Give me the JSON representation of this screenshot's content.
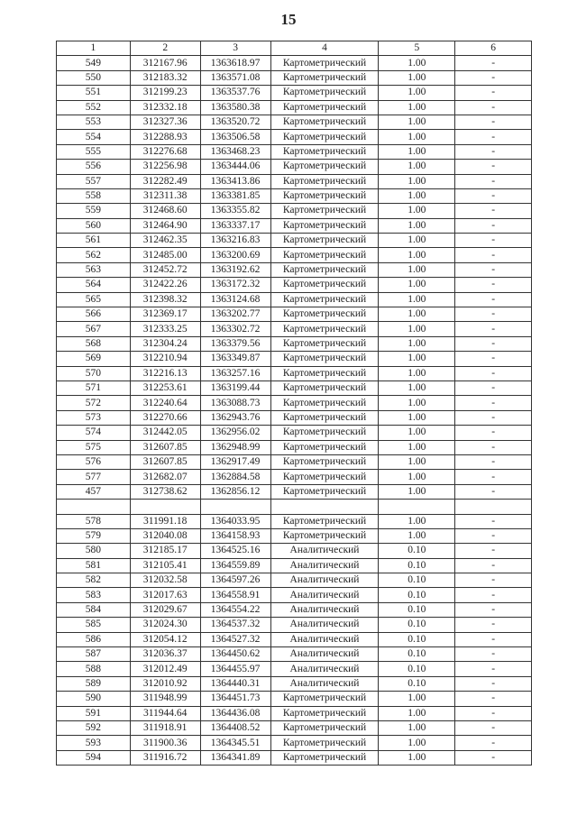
{
  "page_number": "15",
  "table": {
    "headers": [
      "1",
      "2",
      "3",
      "4",
      "5",
      "6"
    ],
    "rows": [
      [
        "549",
        "312167.96",
        "1363618.97",
        "Картометрический",
        "1.00",
        "-"
      ],
      [
        "550",
        "312183.32",
        "1363571.08",
        "Картометрический",
        "1.00",
        "-"
      ],
      [
        "551",
        "312199.23",
        "1363537.76",
        "Картометрический",
        "1.00",
        "-"
      ],
      [
        "552",
        "312332.18",
        "1363580.38",
        "Картометрический",
        "1.00",
        "-"
      ],
      [
        "553",
        "312327.36",
        "1363520.72",
        "Картометрический",
        "1.00",
        "-"
      ],
      [
        "554",
        "312288.93",
        "1363506.58",
        "Картометрический",
        "1.00",
        "-"
      ],
      [
        "555",
        "312276.68",
        "1363468.23",
        "Картометрический",
        "1.00",
        "-"
      ],
      [
        "556",
        "312256.98",
        "1363444.06",
        "Картометрический",
        "1.00",
        "-"
      ],
      [
        "557",
        "312282.49",
        "1363413.86",
        "Картометрический",
        "1.00",
        "-"
      ],
      [
        "558",
        "312311.38",
        "1363381.85",
        "Картометрический",
        "1.00",
        "-"
      ],
      [
        "559",
        "312468.60",
        "1363355.82",
        "Картометрический",
        "1.00",
        "-"
      ],
      [
        "560",
        "312464.90",
        "1363337.17",
        "Картометрический",
        "1.00",
        "-"
      ],
      [
        "561",
        "312462.35",
        "1363216.83",
        "Картометрический",
        "1.00",
        "-"
      ],
      [
        "562",
        "312485.00",
        "1363200.69",
        "Картометрический",
        "1.00",
        "-"
      ],
      [
        "563",
        "312452.72",
        "1363192.62",
        "Картометрический",
        "1.00",
        "-"
      ],
      [
        "564",
        "312422.26",
        "1363172.32",
        "Картометрический",
        "1.00",
        "-"
      ],
      [
        "565",
        "312398.32",
        "1363124.68",
        "Картометрический",
        "1.00",
        "-"
      ],
      [
        "566",
        "312369.17",
        "1363202.77",
        "Картометрический",
        "1.00",
        "-"
      ],
      [
        "567",
        "312333.25",
        "1363302.72",
        "Картометрический",
        "1.00",
        "-"
      ],
      [
        "568",
        "312304.24",
        "1363379.56",
        "Картометрический",
        "1.00",
        "-"
      ],
      [
        "569",
        "312210.94",
        "1363349.87",
        "Картометрический",
        "1.00",
        "-"
      ],
      [
        "570",
        "312216.13",
        "1363257.16",
        "Картометрический",
        "1.00",
        "-"
      ],
      [
        "571",
        "312253.61",
        "1363199.44",
        "Картометрический",
        "1.00",
        "-"
      ],
      [
        "572",
        "312240.64",
        "1363088.73",
        "Картометрический",
        "1.00",
        "-"
      ],
      [
        "573",
        "312270.66",
        "1362943.76",
        "Картометрический",
        "1.00",
        "-"
      ],
      [
        "574",
        "312442.05",
        "1362956.02",
        "Картометрический",
        "1.00",
        "-"
      ],
      [
        "575",
        "312607.85",
        "1362948.99",
        "Картометрический",
        "1.00",
        "-"
      ],
      [
        "576",
        "312607.85",
        "1362917.49",
        "Картометрический",
        "1.00",
        "-"
      ],
      [
        "577",
        "312682.07",
        "1362884.58",
        "Картометрический",
        "1.00",
        "-"
      ],
      [
        "457",
        "312738.62",
        "1362856.12",
        "Картометрический",
        "1.00",
        "-"
      ],
      [
        "",
        "",
        "",
        "",
        "",
        ""
      ],
      [
        "578",
        "311991.18",
        "1364033.95",
        "Картометрический",
        "1.00",
        "-"
      ],
      [
        "579",
        "312040.08",
        "1364158.93",
        "Картометрический",
        "1.00",
        "-"
      ],
      [
        "580",
        "312185.17",
        "1364525.16",
        "Аналитический",
        "0.10",
        "-"
      ],
      [
        "581",
        "312105.41",
        "1364559.89",
        "Аналитический",
        "0.10",
        "-"
      ],
      [
        "582",
        "312032.58",
        "1364597.26",
        "Аналитический",
        "0.10",
        "-"
      ],
      [
        "583",
        "312017.63",
        "1364558.91",
        "Аналитический",
        "0.10",
        "-"
      ],
      [
        "584",
        "312029.67",
        "1364554.22",
        "Аналитический",
        "0.10",
        "-"
      ],
      [
        "585",
        "312024.30",
        "1364537.32",
        "Аналитический",
        "0.10",
        "-"
      ],
      [
        "586",
        "312054.12",
        "1364527.32",
        "Аналитический",
        "0.10",
        "-"
      ],
      [
        "587",
        "312036.37",
        "1364450.62",
        "Аналитический",
        "0.10",
        "-"
      ],
      [
        "588",
        "312012.49",
        "1364455.97",
        "Аналитический",
        "0.10",
        "-"
      ],
      [
        "589",
        "312010.92",
        "1364440.31",
        "Аналитический",
        "0.10",
        "-"
      ],
      [
        "590",
        "311948.99",
        "1364451.73",
        "Картометрический",
        "1.00",
        "-"
      ],
      [
        "591",
        "311944.64",
        "1364436.08",
        "Картометрический",
        "1.00",
        "-"
      ],
      [
        "592",
        "311918.91",
        "1364408.52",
        "Картометрический",
        "1.00",
        "-"
      ],
      [
        "593",
        "311900.36",
        "1364345.51",
        "Картометрический",
        "1.00",
        "-"
      ],
      [
        "594",
        "311916.72",
        "1364341.89",
        "Картометрический",
        "1.00",
        "-"
      ]
    ]
  }
}
